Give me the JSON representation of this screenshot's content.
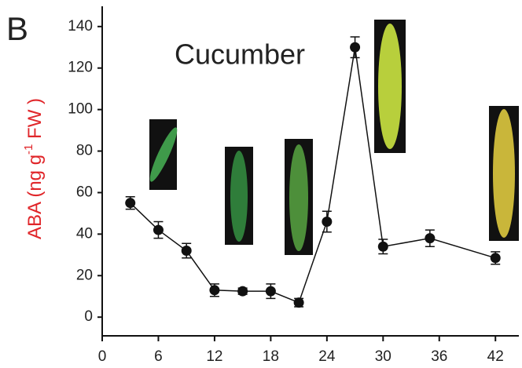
{
  "panel": "B",
  "chart_data": {
    "type": "line",
    "title": "Cucumber",
    "y_label": [
      "ABA (ng g",
      "-1",
      " FW )"
    ],
    "x": [
      3,
      6,
      9,
      12,
      15,
      18,
      21,
      24,
      27,
      30,
      35,
      42
    ],
    "values": [
      55,
      42,
      32,
      13,
      12.5,
      12.5,
      7,
      46,
      130,
      34,
      38,
      28.5
    ],
    "errors": [
      3,
      4,
      3.5,
      3,
      1.5,
      3.5,
      2,
      5,
      5,
      3.5,
      4,
      3
    ],
    "color": "#111111",
    "xlim": [
      0,
      44.5
    ],
    "xticks": [
      0,
      6,
      12,
      18,
      24,
      30,
      36,
      42
    ],
    "ylim": [
      -9,
      149
    ],
    "yticks": [
      0,
      20,
      40,
      60,
      80,
      100,
      120,
      140
    ]
  }
}
